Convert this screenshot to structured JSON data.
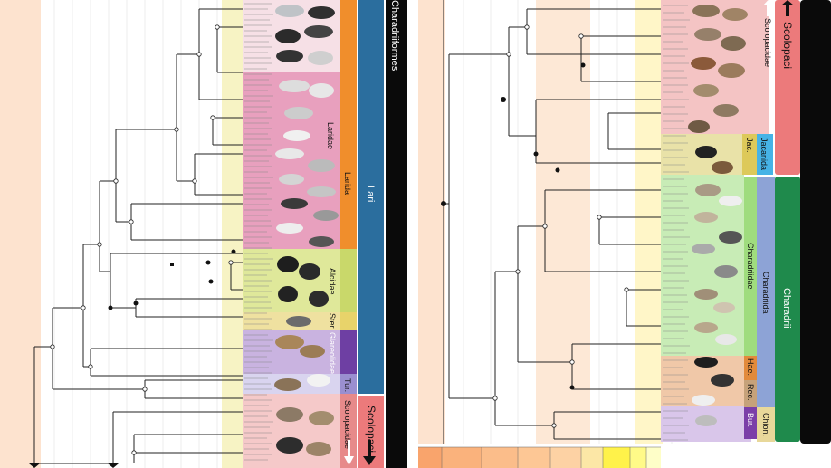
{
  "left": {
    "order_label": "Charadriiformes",
    "suborders": [
      {
        "label": "Lari",
        "color": "#2b6e9e"
      },
      {
        "label": "Scolopaci",
        "color": "#ec7a7b"
      }
    ],
    "families": [
      {
        "label": "Laridae",
        "color": "#d96aa0"
      },
      {
        "label": "Larida",
        "color": "#f08e2c"
      },
      {
        "label": "Alcidae",
        "color": "#c9d86a"
      },
      {
        "label": "Ster.",
        "color": "#e8d36a"
      },
      {
        "label": "Glareolidae",
        "color": "#6e3fa3"
      },
      {
        "label": "Tur.",
        "color": "#9a8fd0"
      },
      {
        "label": "Scolopacidae",
        "color": "#e78a8a"
      }
    ]
  },
  "right": {
    "suborders": [
      {
        "label": "Scolopaci",
        "color": "#ec7a7b"
      },
      {
        "label": "Charadrii",
        "color": "#1f8a4c"
      }
    ],
    "families": [
      {
        "label": "Scolopacidae",
        "color": "#e78a8a"
      },
      {
        "label": "Jac.",
        "color": "#ddc95a"
      },
      {
        "label": "Jacanida",
        "color": "#46b3e6"
      },
      {
        "label": "Charadriidae",
        "color": "#9fdc7e"
      },
      {
        "label": "Charadriida",
        "color": "#8da3d6"
      },
      {
        "label": "Hae.",
        "color": "#e28a3b"
      },
      {
        "label": "Rec.",
        "color": "#c6a27a"
      },
      {
        "label": "Bur.",
        "color": "#7b3fa8"
      },
      {
        "label": "Chion.",
        "color": "#e8d89a"
      }
    ]
  },
  "colors": {
    "era_band": "#fde3cf",
    "era_band_light": "#fff3e8",
    "order_black": "#0a0a0a",
    "tree_line": "#222222"
  }
}
